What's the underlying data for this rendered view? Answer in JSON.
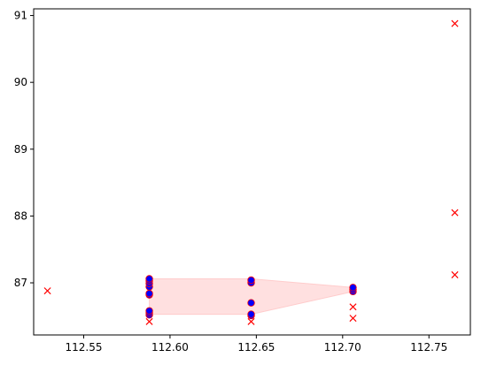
{
  "chart_data": {
    "type": "scatter",
    "title": "",
    "xlabel": "",
    "ylabel": "",
    "xlim": [
      112.521,
      112.774
    ],
    "ylim": [
      86.22,
      91.1
    ],
    "grid": false,
    "x_ticks": [
      112.55,
      112.6,
      112.65,
      112.7,
      112.75
    ],
    "x_tick_labels": [
      "112.55",
      "112.60",
      "112.65",
      "112.70",
      "112.75"
    ],
    "y_ticks": [
      87,
      88,
      89,
      90,
      91
    ],
    "y_tick_labels": [
      "87",
      "88",
      "89",
      "90",
      "91"
    ],
    "series": [
      {
        "marker": "x",
        "color": "#ff0000",
        "points": [
          [
            112.529,
            86.88
          ],
          [
            112.588,
            86.42
          ],
          [
            112.647,
            86.42
          ],
          [
            112.706,
            86.47
          ],
          [
            112.706,
            86.64
          ],
          [
            112.765,
            87.12
          ],
          [
            112.765,
            88.05
          ],
          [
            112.765,
            90.88
          ]
        ]
      },
      {
        "marker": "o",
        "color": "#0000ff",
        "edge_color": "#ff0000",
        "points": [
          [
            112.588,
            86.52
          ],
          [
            112.588,
            86.55
          ],
          [
            112.588,
            86.58
          ],
          [
            112.588,
            86.82
          ],
          [
            112.588,
            86.84
          ],
          [
            112.588,
            86.94
          ],
          [
            112.588,
            86.99
          ],
          [
            112.588,
            87.03
          ],
          [
            112.588,
            87.06
          ],
          [
            112.647,
            86.51
          ],
          [
            112.647,
            86.53
          ],
          [
            112.647,
            86.7
          ],
          [
            112.647,
            87.0
          ],
          [
            112.647,
            87.04
          ],
          [
            112.706,
            86.87
          ],
          [
            112.706,
            86.9
          ],
          [
            112.706,
            86.93
          ]
        ]
      }
    ],
    "fill_region": {
      "color": "#ffcccc",
      "opacity": 0.6,
      "x": [
        112.588,
        112.647,
        112.706
      ],
      "upper": [
        87.06,
        87.06,
        86.93
      ],
      "lower": [
        86.53,
        86.53,
        86.87
      ]
    }
  }
}
